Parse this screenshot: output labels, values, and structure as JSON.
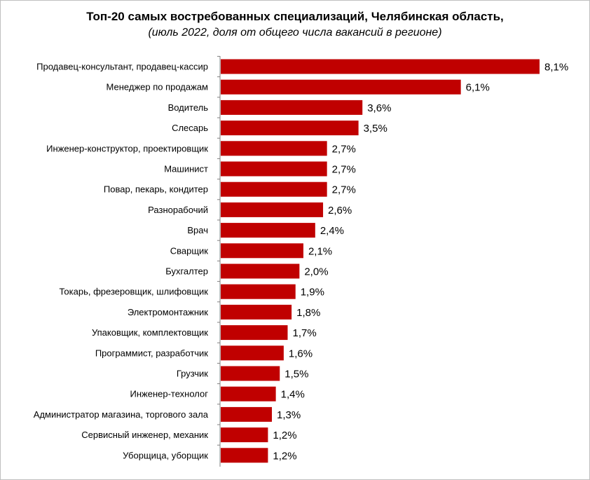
{
  "chart_data": {
    "type": "bar",
    "orientation": "horizontal",
    "title": "Топ-20 самых востребованных специализаций, Челябинская область,",
    "subtitle": "(июль 2022, доля от общего числа вакансий в регионе)",
    "xlabel": "",
    "ylabel": "",
    "grid": false,
    "legend": "none",
    "value_suffix": "%",
    "decimal_separator": ",",
    "bar_color": "#c00000",
    "axis_color": "#808080",
    "xlim": [
      0,
      8.1
    ],
    "categories": [
      "Продавец-консультант, продавец-кассир",
      "Менеджер по продажам",
      "Водитель",
      "Слесарь",
      "Инженер-конструктор, проектировщик",
      "Машинист",
      "Повар, пекарь, кондитер",
      "Разнорабочий",
      "Врач",
      "Сварщик",
      "Бухгалтер",
      "Токарь, фрезеровщик, шлифовщик",
      "Электромонтажник",
      "Упаковщик, комплектовщик",
      "Программист, разработчик",
      "Грузчик",
      "Инженер-технолог",
      "Администратор магазина, торгового зала",
      "Сервисный инженер, механик",
      "Уборщица, уборщик"
    ],
    "values": [
      8.1,
      6.1,
      3.6,
      3.5,
      2.7,
      2.7,
      2.7,
      2.6,
      2.4,
      2.1,
      2.0,
      1.9,
      1.8,
      1.7,
      1.6,
      1.5,
      1.4,
      1.3,
      1.2,
      1.2
    ],
    "value_labels": [
      "8,1%",
      "6,1%",
      "3,6%",
      "3,5%",
      "2,7%",
      "2,7%",
      "2,7%",
      "2,6%",
      "2,4%",
      "2,1%",
      "2,0%",
      "1,9%",
      "1,8%",
      "1,7%",
      "1,6%",
      "1,5%",
      "1,4%",
      "1,3%",
      "1,2%",
      "1,2%"
    ]
  }
}
